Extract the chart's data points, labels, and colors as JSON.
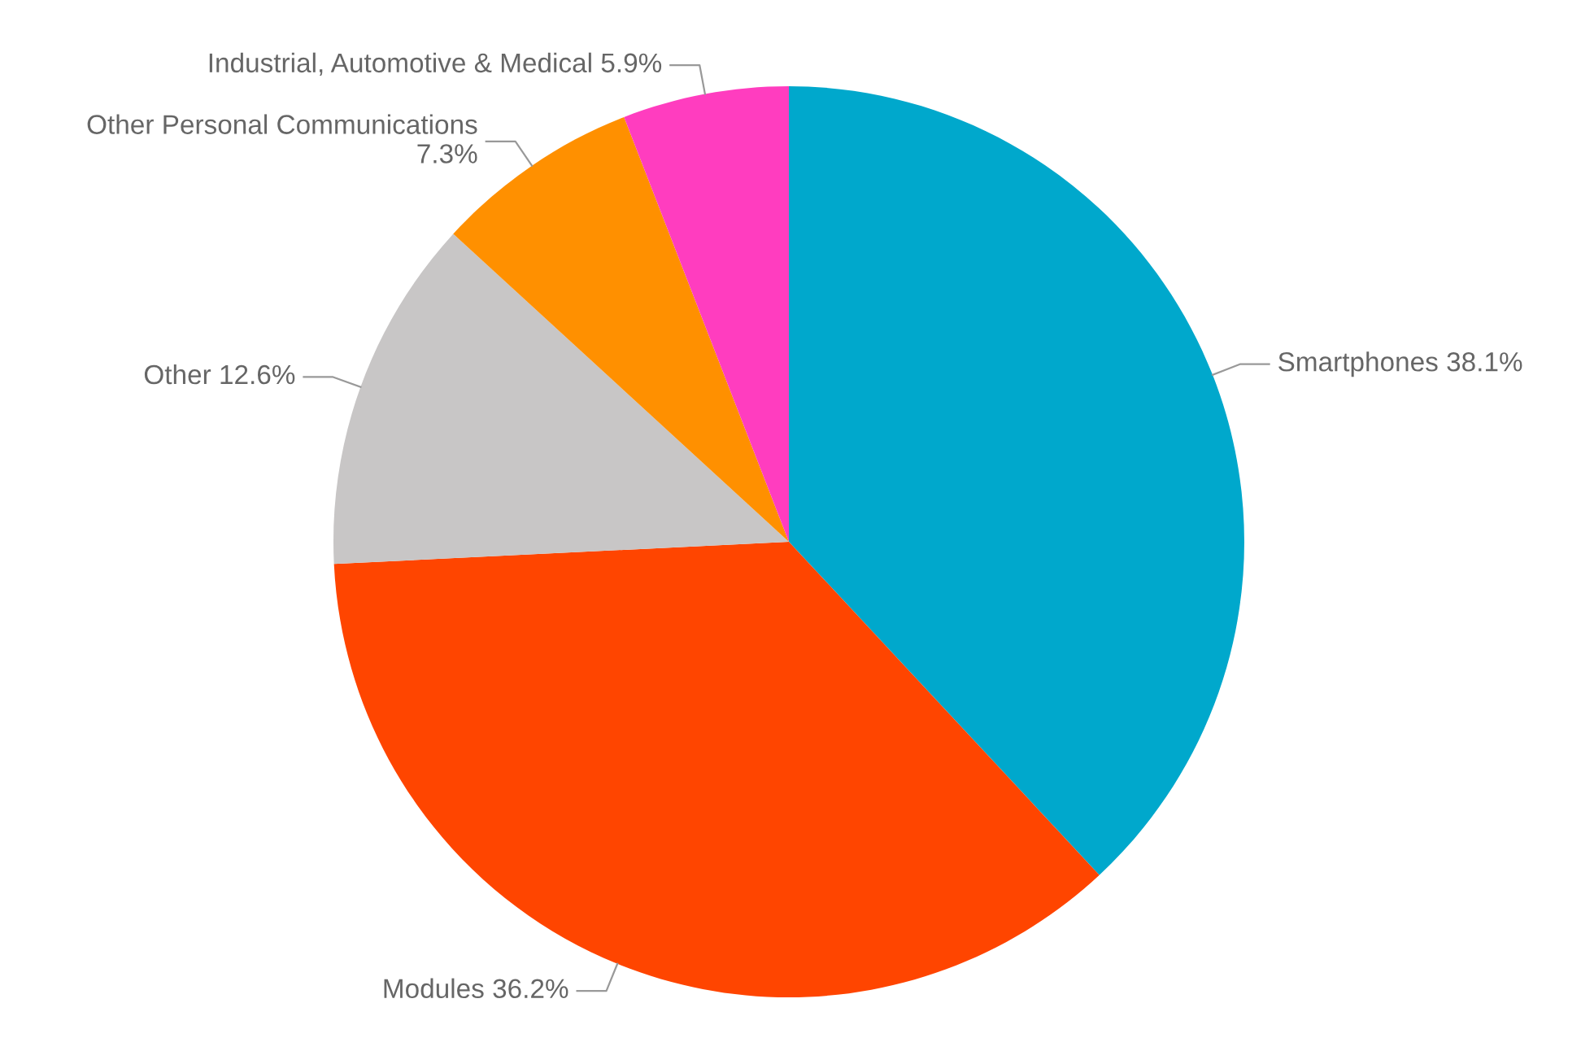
{
  "chart_data": {
    "type": "pie",
    "categories": [
      "Smartphones",
      "Modules",
      "Other",
      "Other Personal Communications",
      "Industrial, Automotive & Medical"
    ],
    "values": [
      38.1,
      36.2,
      12.6,
      7.3,
      5.9
    ],
    "value_labels": [
      "38.1%",
      "36.2%",
      "12.6%",
      "7.3%",
      "5.9%"
    ],
    "colors": [
      "#00a8cc",
      "#ff4500",
      "#c8c6c6",
      "#ff9000",
      "#ff3dbf"
    ],
    "legend": false
  }
}
